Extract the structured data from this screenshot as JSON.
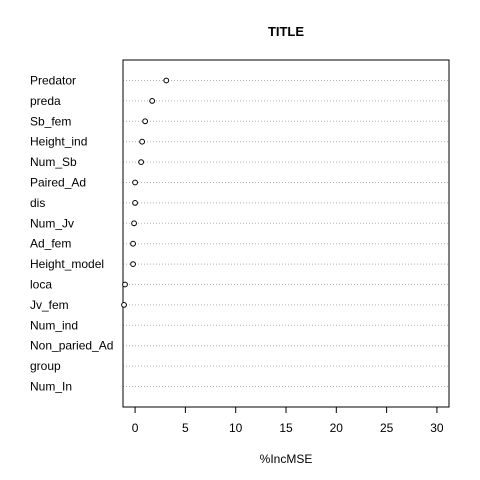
{
  "chart_data": {
    "type": "scatter",
    "title": "TITLE",
    "xlabel": "%IncMSE",
    "ylabel": "",
    "xlim": [
      -1.2,
      31.2
    ],
    "xticks": [
      0,
      5,
      10,
      15,
      20,
      25,
      30
    ],
    "grid": "dotted horizontal lines at each variable",
    "categories": [
      "Predator",
      "preda",
      "Sb_fem",
      "Height_ind",
      "Num_Sb",
      "Paired_Ad",
      "dis",
      "Num_Jv",
      "Ad_fem",
      "Height_model",
      "loca",
      "Jv_fem",
      "Num_ind",
      "Non_paried_Ad",
      "group",
      "Num_In"
    ],
    "values": [
      3.1,
      1.7,
      1.0,
      0.7,
      0.6,
      0.0,
      0.0,
      -0.1,
      -0.2,
      -0.2,
      -1.0,
      -1.1,
      null,
      null,
      null,
      null
    ]
  },
  "colors": {
    "axis": "#000000",
    "grid": "#b0b0b0",
    "point_stroke": "#000000",
    "point_fill": "#ffffff"
  }
}
